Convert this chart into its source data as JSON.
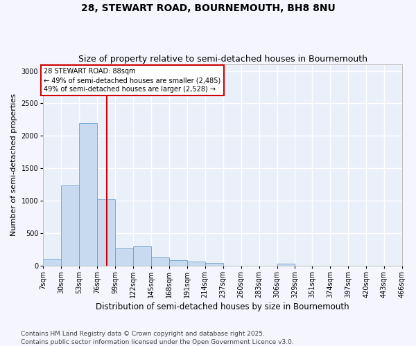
{
  "title": "28, STEWART ROAD, BOURNEMOUTH, BH8 8NU",
  "subtitle": "Size of property relative to semi-detached houses in Bournemouth",
  "xlabel": "Distribution of semi-detached houses by size in Bournemouth",
  "ylabel": "Number of semi-detached properties",
  "bar_color": "#c8daf0",
  "bar_edge_color": "#6aa0cc",
  "background_color": "#eaf0fa",
  "grid_color": "#ffffff",
  "vline_x": 88,
  "vline_color": "#cc0000",
  "annotation_title": "28 STEWART ROAD: 88sqm",
  "annotation_line1": "← 49% of semi-detached houses are smaller (2,485)",
  "annotation_line2": "49% of semi-detached houses are larger (2,528) →",
  "annotation_box_color": "#cc0000",
  "bins": [
    7,
    30,
    53,
    76,
    99,
    122,
    145,
    168,
    191,
    214,
    237,
    260,
    283,
    306,
    329,
    351,
    374,
    397,
    420,
    443,
    466
  ],
  "bin_labels": [
    "7sqm",
    "30sqm",
    "53sqm",
    "76sqm",
    "99sqm",
    "122sqm",
    "145sqm",
    "168sqm",
    "191sqm",
    "214sqm",
    "237sqm",
    "260sqm",
    "283sqm",
    "306sqm",
    "329sqm",
    "351sqm",
    "374sqm",
    "397sqm",
    "420sqm",
    "443sqm",
    "466sqm"
  ],
  "counts": [
    100,
    1230,
    2200,
    1020,
    260,
    300,
    120,
    80,
    60,
    40,
    0,
    0,
    0,
    25,
    0,
    0,
    0,
    0,
    0,
    0
  ],
  "ylim": [
    0,
    3100
  ],
  "yticks": [
    0,
    500,
    1000,
    1500,
    2000,
    2500,
    3000
  ],
  "footer": "Contains HM Land Registry data © Crown copyright and database right 2025.\nContains public sector information licensed under the Open Government Licence v3.0.",
  "title_fontsize": 10,
  "subtitle_fontsize": 9,
  "xlabel_fontsize": 8.5,
  "ylabel_fontsize": 8,
  "tick_fontsize": 7,
  "footer_fontsize": 6.5,
  "annot_fontsize": 7
}
